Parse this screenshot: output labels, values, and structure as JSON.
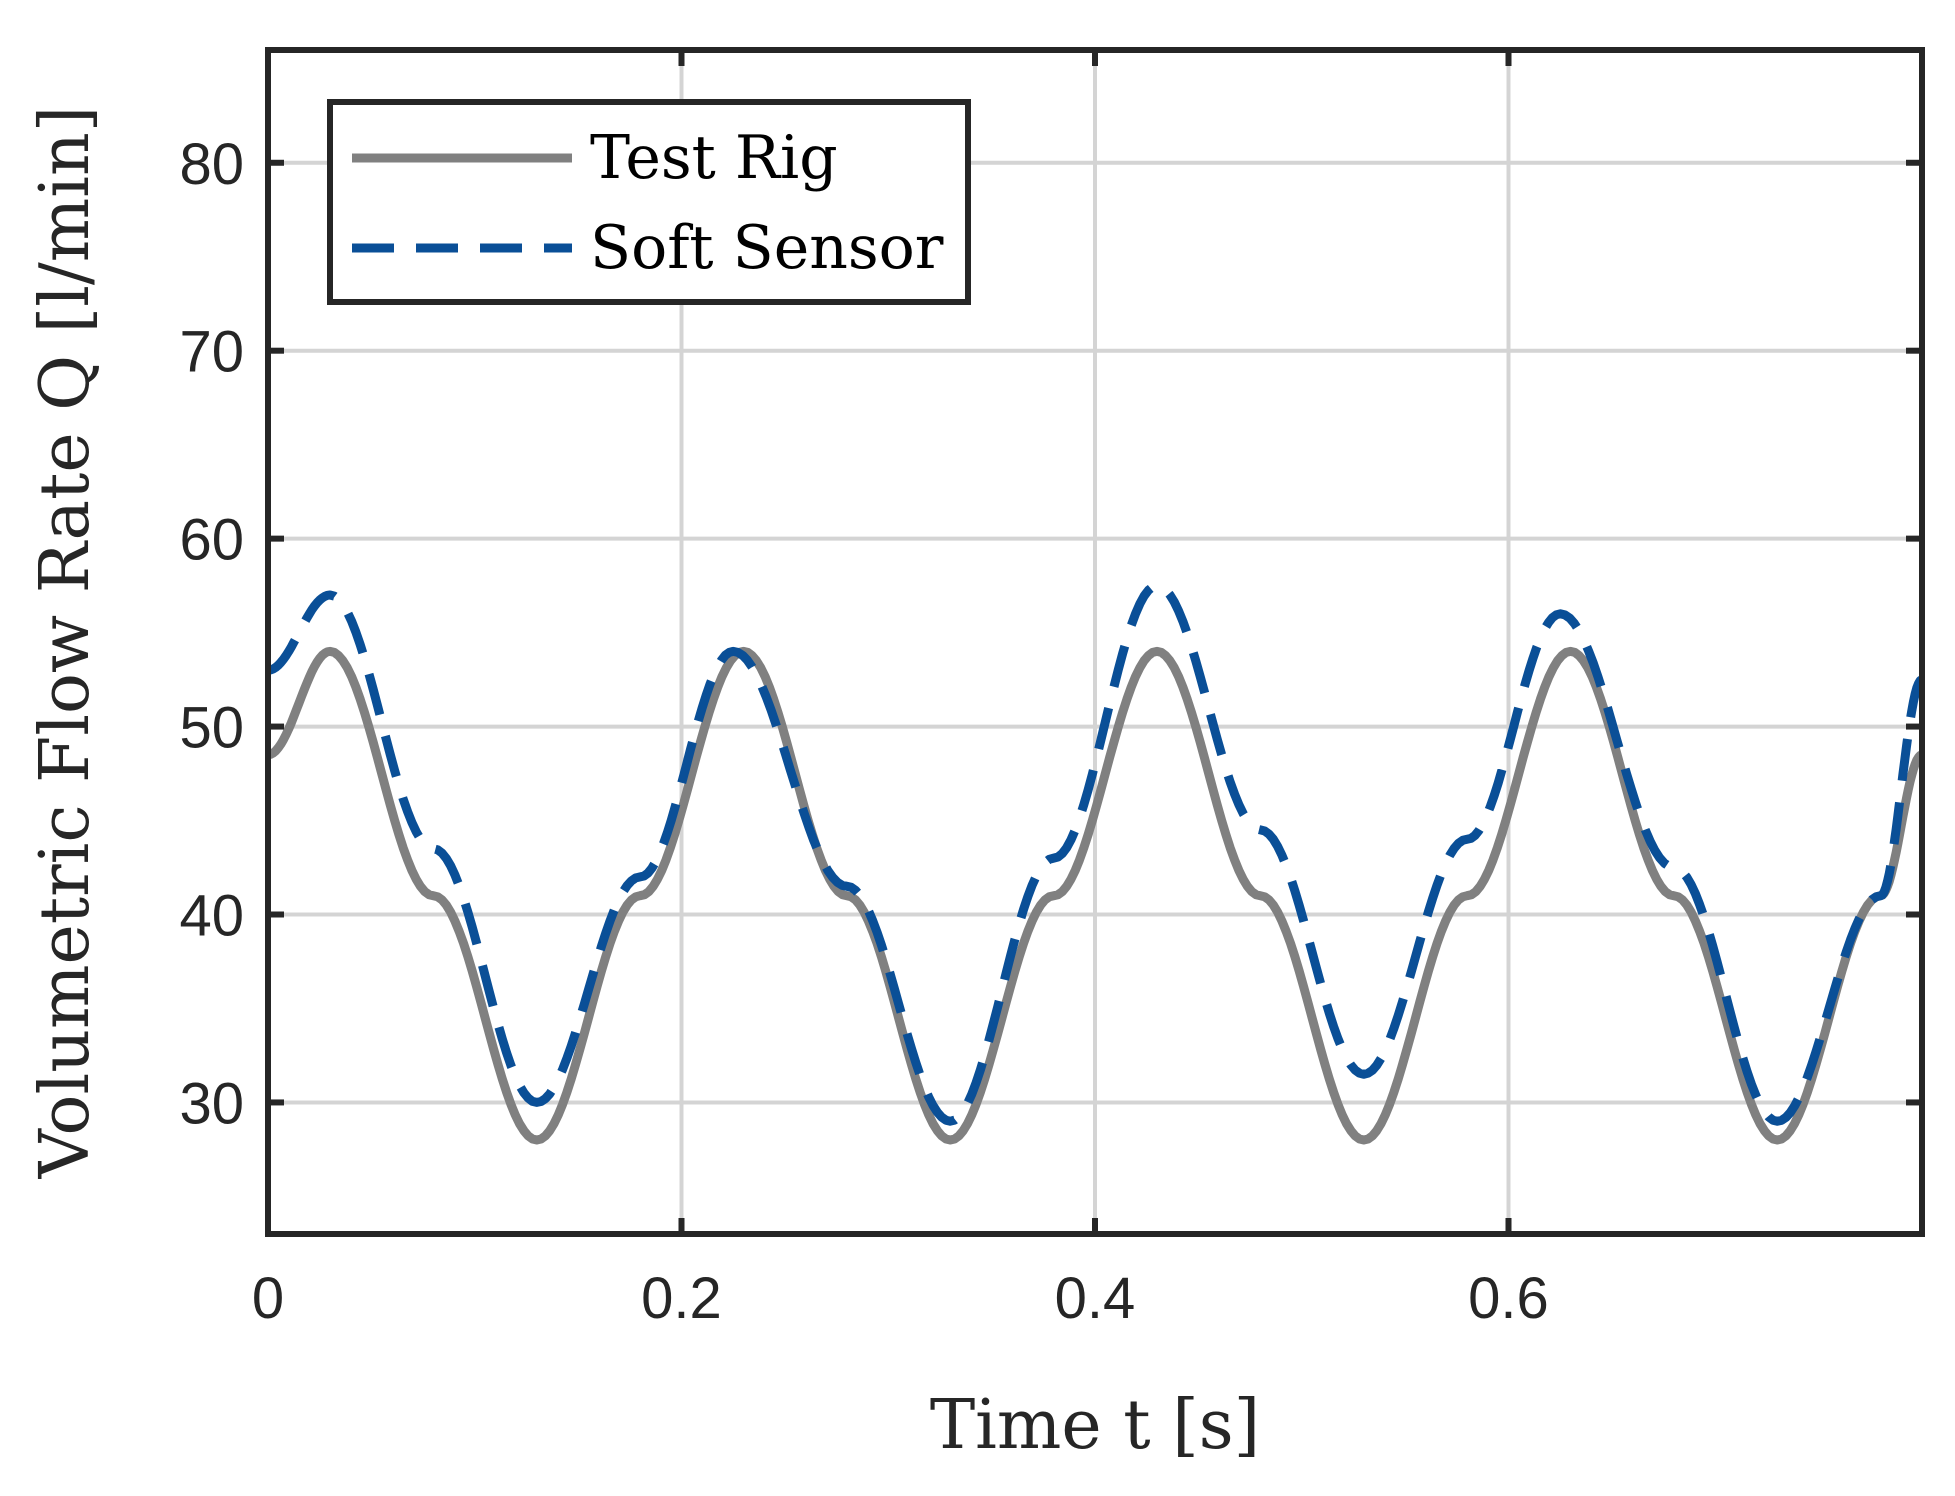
{
  "chart_data": {
    "type": "line",
    "title": "",
    "xlabel": "Time t [s]",
    "ylabel": "Volumetric Flow Rate Q [l/min]",
    "xlim": [
      0,
      0.8
    ],
    "ylim": [
      23,
      86
    ],
    "xticks": [
      0,
      0.2,
      0.4,
      0.6
    ],
    "xtick_labels": [
      "0",
      "0.2",
      "0.4",
      "0.6"
    ],
    "yticks": [
      30,
      40,
      50,
      60,
      70,
      80
    ],
    "ytick_labels": [
      "30",
      "40",
      "50",
      "60",
      "70",
      "80"
    ],
    "grid": true,
    "legend_position": "top-left",
    "series": [
      {
        "name": "Test Rig",
        "color": "#808080",
        "style": "solid",
        "x": [
          0,
          0.03,
          0.08,
          0.13,
          0.18,
          0.23,
          0.28,
          0.33,
          0.38,
          0.43,
          0.48,
          0.53,
          0.58,
          0.63,
          0.68,
          0.73,
          0.78,
          0.8
        ],
        "y": [
          48.5,
          54,
          41,
          28,
          41,
          54,
          41,
          28,
          41,
          54,
          41,
          28,
          41,
          54,
          41,
          28,
          41,
          48.5
        ]
      },
      {
        "name": "Soft Sensor",
        "color": "#0a4f97",
        "style": "dashed",
        "x": [
          0,
          0.03,
          0.08,
          0.13,
          0.18,
          0.225,
          0.28,
          0.33,
          0.38,
          0.43,
          0.48,
          0.53,
          0.58,
          0.625,
          0.68,
          0.73,
          0.78,
          0.8
        ],
        "y": [
          53,
          57,
          43.5,
          30,
          42,
          54,
          41.5,
          29,
          43,
          57.5,
          44.5,
          31.5,
          44,
          56,
          42.5,
          29,
          41,
          52.5
        ]
      }
    ]
  },
  "legend": {
    "entries": [
      "Test Rig",
      "Soft Sensor"
    ]
  }
}
